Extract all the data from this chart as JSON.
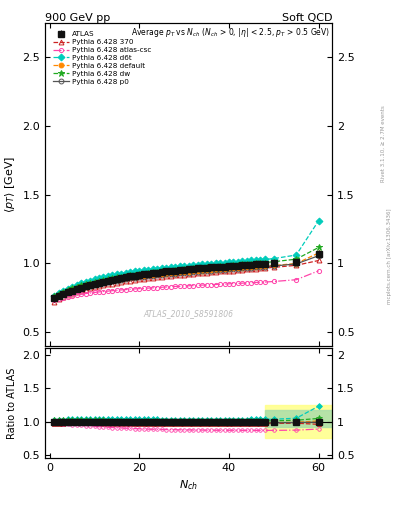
{
  "title_left": "900 GeV pp",
  "title_right": "Soft QCD",
  "watermark": "ATLAS_2010_S8591806",
  "ylabel1": "⟨p_{T}⟩ [GeV]",
  "ylabel2": "Ratio to ATLAS",
  "xlabel": "N_{ch}",
  "xlim": [
    -1,
    63
  ],
  "ylim1": [
    0.4,
    2.75
  ],
  "ylim2": [
    0.45,
    2.1
  ],
  "yticks1": [
    0.5,
    1.0,
    1.5,
    2.0,
    2.5
  ],
  "yticks2": [
    0.5,
    1.0,
    1.5,
    2.0
  ],
  "xticks": [
    0,
    20,
    40,
    60
  ],
  "nch_atlas": [
    1,
    2,
    3,
    4,
    5,
    6,
    7,
    8,
    9,
    10,
    11,
    12,
    13,
    14,
    15,
    16,
    17,
    18,
    19,
    20,
    21,
    22,
    23,
    24,
    25,
    26,
    27,
    28,
    29,
    30,
    31,
    32,
    33,
    34,
    35,
    36,
    37,
    38,
    39,
    40,
    41,
    42,
    43,
    44,
    45,
    46,
    47,
    48,
    50,
    55,
    60
  ],
  "atlas_y": [
    0.745,
    0.762,
    0.776,
    0.789,
    0.801,
    0.812,
    0.822,
    0.831,
    0.84,
    0.849,
    0.857,
    0.865,
    0.872,
    0.879,
    0.886,
    0.892,
    0.898,
    0.904,
    0.909,
    0.914,
    0.919,
    0.924,
    0.928,
    0.932,
    0.936,
    0.94,
    0.944,
    0.947,
    0.95,
    0.953,
    0.956,
    0.959,
    0.962,
    0.964,
    0.967,
    0.969,
    0.972,
    0.974,
    0.976,
    0.978,
    0.98,
    0.982,
    0.985,
    0.987,
    0.989,
    0.991,
    0.993,
    0.995,
    0.999,
    1.01,
    1.065
  ],
  "atlas_yerr": [
    0.025,
    0.018,
    0.014,
    0.012,
    0.01,
    0.009,
    0.008,
    0.008,
    0.007,
    0.007,
    0.006,
    0.006,
    0.006,
    0.006,
    0.006,
    0.006,
    0.006,
    0.006,
    0.006,
    0.006,
    0.006,
    0.006,
    0.006,
    0.006,
    0.006,
    0.006,
    0.006,
    0.006,
    0.007,
    0.007,
    0.007,
    0.007,
    0.007,
    0.007,
    0.007,
    0.008,
    0.008,
    0.008,
    0.008,
    0.009,
    0.009,
    0.009,
    0.01,
    0.01,
    0.01,
    0.011,
    0.011,
    0.012,
    0.013,
    0.018,
    0.03
  ],
  "series": [
    {
      "label": "Pythia 6.428 370",
      "color": "#cc2222",
      "linestyle": "--",
      "marker": "^",
      "markersize": 3.5,
      "fillstyle": "none",
      "x": [
        1,
        2,
        3,
        4,
        5,
        6,
        7,
        8,
        9,
        10,
        11,
        12,
        13,
        14,
        15,
        16,
        17,
        18,
        19,
        20,
        21,
        22,
        23,
        24,
        25,
        26,
        27,
        28,
        29,
        30,
        31,
        32,
        33,
        34,
        35,
        36,
        37,
        38,
        39,
        40,
        41,
        42,
        43,
        44,
        45,
        46,
        47,
        48,
        50,
        55,
        60
      ],
      "y": [
        0.72,
        0.737,
        0.752,
        0.766,
        0.778,
        0.789,
        0.799,
        0.808,
        0.817,
        0.825,
        0.832,
        0.839,
        0.846,
        0.852,
        0.858,
        0.863,
        0.868,
        0.873,
        0.878,
        0.882,
        0.886,
        0.89,
        0.894,
        0.898,
        0.901,
        0.905,
        0.908,
        0.911,
        0.914,
        0.917,
        0.92,
        0.923,
        0.926,
        0.929,
        0.932,
        0.934,
        0.937,
        0.94,
        0.942,
        0.945,
        0.947,
        0.95,
        0.953,
        0.955,
        0.958,
        0.96,
        0.963,
        0.965,
        0.97,
        0.985,
        1.02
      ]
    },
    {
      "label": "Pythia 6.428 atlas-csc",
      "color": "#ff44aa",
      "linestyle": "-.",
      "marker": "o",
      "markersize": 3,
      "fillstyle": "none",
      "x": [
        1,
        2,
        3,
        4,
        5,
        6,
        7,
        8,
        9,
        10,
        11,
        12,
        13,
        14,
        15,
        16,
        17,
        18,
        19,
        20,
        21,
        22,
        23,
        24,
        25,
        26,
        27,
        28,
        29,
        30,
        31,
        32,
        33,
        34,
        35,
        36,
        37,
        38,
        39,
        40,
        41,
        42,
        43,
        44,
        45,
        46,
        47,
        48,
        50,
        55,
        60
      ],
      "y": [
        0.73,
        0.74,
        0.749,
        0.756,
        0.763,
        0.769,
        0.774,
        0.779,
        0.783,
        0.787,
        0.791,
        0.794,
        0.797,
        0.8,
        0.803,
        0.806,
        0.808,
        0.811,
        0.813,
        0.815,
        0.817,
        0.819,
        0.821,
        0.823,
        0.825,
        0.827,
        0.829,
        0.831,
        0.832,
        0.834,
        0.836,
        0.837,
        0.839,
        0.841,
        0.842,
        0.844,
        0.845,
        0.847,
        0.848,
        0.85,
        0.852,
        0.853,
        0.855,
        0.857,
        0.858,
        0.86,
        0.861,
        0.863,
        0.867,
        0.88,
        0.945
      ]
    },
    {
      "label": "Pythia 6.428 d6t",
      "color": "#00ccbb",
      "linestyle": "--",
      "marker": "D",
      "markersize": 3.5,
      "fillstyle": "full",
      "x": [
        1,
        2,
        3,
        4,
        5,
        6,
        7,
        8,
        9,
        10,
        11,
        12,
        13,
        14,
        15,
        16,
        17,
        18,
        19,
        20,
        21,
        22,
        23,
        24,
        25,
        26,
        27,
        28,
        29,
        30,
        31,
        32,
        33,
        34,
        35,
        36,
        37,
        38,
        39,
        40,
        41,
        42,
        43,
        44,
        45,
        46,
        47,
        48,
        50,
        55,
        60
      ],
      "y": [
        0.76,
        0.78,
        0.798,
        0.814,
        0.829,
        0.842,
        0.854,
        0.864,
        0.874,
        0.883,
        0.891,
        0.899,
        0.906,
        0.913,
        0.919,
        0.925,
        0.93,
        0.935,
        0.94,
        0.945,
        0.949,
        0.953,
        0.957,
        0.961,
        0.964,
        0.968,
        0.971,
        0.974,
        0.977,
        0.98,
        0.983,
        0.986,
        0.989,
        0.991,
        0.994,
        0.997,
        0.999,
        1.002,
        1.004,
        1.007,
        1.009,
        1.012,
        1.014,
        1.017,
        1.02,
        1.022,
        1.025,
        1.028,
        1.034,
        1.06,
        1.31
      ]
    },
    {
      "label": "Pythia 6.428 default",
      "color": "#ff8800",
      "linestyle": "--",
      "marker": "o",
      "markersize": 3.5,
      "fillstyle": "full",
      "x": [
        1,
        2,
        3,
        4,
        5,
        6,
        7,
        8,
        9,
        10,
        11,
        12,
        13,
        14,
        15,
        16,
        17,
        18,
        19,
        20,
        21,
        22,
        23,
        24,
        25,
        26,
        27,
        28,
        29,
        30,
        31,
        32,
        33,
        34,
        35,
        36,
        37,
        38,
        39,
        40,
        41,
        42,
        43,
        44,
        45,
        46,
        47,
        48,
        50,
        55,
        60
      ],
      "y": [
        0.755,
        0.771,
        0.785,
        0.798,
        0.81,
        0.82,
        0.829,
        0.838,
        0.846,
        0.853,
        0.86,
        0.866,
        0.872,
        0.878,
        0.883,
        0.888,
        0.892,
        0.897,
        0.901,
        0.905,
        0.909,
        0.912,
        0.916,
        0.919,
        0.922,
        0.925,
        0.928,
        0.931,
        0.934,
        0.936,
        0.939,
        0.941,
        0.944,
        0.946,
        0.949,
        0.951,
        0.953,
        0.956,
        0.958,
        0.96,
        0.963,
        0.965,
        0.967,
        0.97,
        0.972,
        0.974,
        0.977,
        0.979,
        0.984,
        0.998,
        1.075
      ]
    },
    {
      "label": "Pythia 6.428 dw",
      "color": "#22aa22",
      "linestyle": "--",
      "marker": "*",
      "markersize": 4.5,
      "fillstyle": "full",
      "x": [
        1,
        2,
        3,
        4,
        5,
        6,
        7,
        8,
        9,
        10,
        11,
        12,
        13,
        14,
        15,
        16,
        17,
        18,
        19,
        20,
        21,
        22,
        23,
        24,
        25,
        26,
        27,
        28,
        29,
        30,
        31,
        32,
        33,
        34,
        35,
        36,
        37,
        38,
        39,
        40,
        41,
        42,
        43,
        44,
        45,
        46,
        47,
        48,
        50,
        55,
        60
      ],
      "y": [
        0.76,
        0.777,
        0.792,
        0.806,
        0.818,
        0.829,
        0.839,
        0.848,
        0.857,
        0.865,
        0.872,
        0.879,
        0.885,
        0.891,
        0.897,
        0.902,
        0.907,
        0.912,
        0.917,
        0.921,
        0.925,
        0.929,
        0.933,
        0.937,
        0.94,
        0.944,
        0.947,
        0.95,
        0.953,
        0.956,
        0.959,
        0.962,
        0.965,
        0.967,
        0.97,
        0.973,
        0.975,
        0.978,
        0.98,
        0.983,
        0.986,
        0.988,
        0.991,
        0.994,
        0.996,
        0.999,
        1.002,
        1.005,
        1.011,
        1.03,
        1.115
      ]
    },
    {
      "label": "Pythia 6.428 p0",
      "color": "#555555",
      "linestyle": "-",
      "marker": "o",
      "markersize": 3.5,
      "fillstyle": "none",
      "x": [
        1,
        2,
        3,
        4,
        5,
        6,
        7,
        8,
        9,
        10,
        11,
        12,
        13,
        14,
        15,
        16,
        17,
        18,
        19,
        20,
        21,
        22,
        23,
        24,
        25,
        26,
        27,
        28,
        29,
        30,
        31,
        32,
        33,
        34,
        35,
        36,
        37,
        38,
        39,
        40,
        41,
        42,
        43,
        44,
        45,
        46,
        47,
        48,
        50,
        55,
        60
      ],
      "y": [
        0.745,
        0.761,
        0.775,
        0.788,
        0.799,
        0.81,
        0.819,
        0.828,
        0.836,
        0.843,
        0.85,
        0.857,
        0.863,
        0.869,
        0.874,
        0.879,
        0.884,
        0.889,
        0.893,
        0.897,
        0.901,
        0.905,
        0.908,
        0.912,
        0.915,
        0.918,
        0.921,
        0.924,
        0.927,
        0.93,
        0.932,
        0.935,
        0.938,
        0.94,
        0.943,
        0.945,
        0.948,
        0.95,
        0.952,
        0.955,
        0.957,
        0.96,
        0.962,
        0.965,
        0.967,
        0.97,
        0.972,
        0.975,
        0.98,
        0.995,
        1.055
      ]
    }
  ],
  "atlas_color": "#111111",
  "atlas_marker": "s",
  "atlas_markersize": 4.5
}
